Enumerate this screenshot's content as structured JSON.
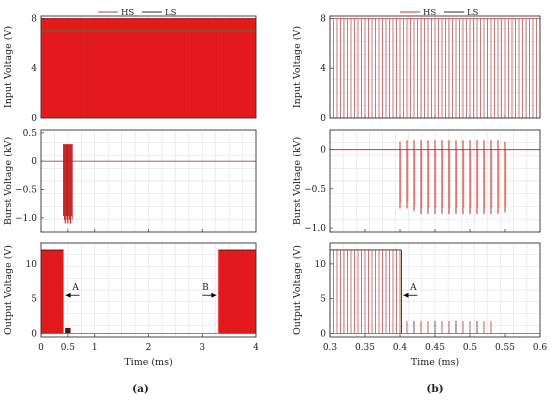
{
  "legend": {
    "hs": "HS",
    "ls": "LS"
  },
  "colors": {
    "hs": "#b04040",
    "ls": "#333333",
    "fill": "#e41a1c",
    "grid": "#dddddd",
    "axis": "#333333"
  },
  "chart_data": [
    {
      "panel": "a",
      "label": "(a)",
      "xlabel": "Time (ms)",
      "xlim": [
        0,
        4
      ],
      "xticks": [
        "0",
        "0.5",
        "1",
        "2",
        "3",
        "4"
      ],
      "xtick_values": [
        0,
        0.5,
        1,
        2,
        3,
        4
      ],
      "subplots": [
        {
          "type": "area",
          "ylabel": "Input Voltage (V)",
          "ylim": [
            0,
            8.2
          ],
          "yticks": [
            0,
            4,
            8
          ],
          "hs_level": 8.0,
          "ls_level": 7.0,
          "filled_span": [
            0,
            4
          ]
        },
        {
          "type": "line",
          "ylabel": "Burst Voltage (kV)",
          "ylim": [
            -1.25,
            0.55
          ],
          "yticks": [
            0.5,
            0,
            -0.5,
            -1.0
          ],
          "ytick_labels": [
            "0.5",
            "0",
            "−0.5",
            "−1.0"
          ],
          "burst_span": [
            0.42,
            0.58
          ],
          "burst_max": 0.3,
          "burst_min": -1.1
        },
        {
          "type": "area",
          "ylabel": "Output Voltage (V)",
          "ylim": [
            -0.5,
            13
          ],
          "yticks": [
            0,
            5,
            10
          ],
          "level": 12,
          "on_spans": [
            [
              0,
              0.42
            ],
            [
              3.3,
              4.0
            ]
          ],
          "residual_span": [
            0.45,
            0.55
          ],
          "residual_level": 0.8,
          "annotations": [
            {
              "text": "A",
              "x": 0.42,
              "y": 5.5,
              "dir": "left"
            },
            {
              "text": "B",
              "x": 3.3,
              "y": 5.5,
              "dir": "right"
            }
          ]
        }
      ]
    },
    {
      "panel": "b",
      "label": "(b)",
      "xlabel": "Time (ms)",
      "xlim": [
        0.3,
        0.6
      ],
      "xticks": [
        "0.3",
        "0.35",
        "0.4",
        "0.45",
        "0.5",
        "0.55",
        "0.6"
      ],
      "xtick_values": [
        0.3,
        0.35,
        0.4,
        0.45,
        0.5,
        0.55,
        0.6
      ],
      "subplots": [
        {
          "type": "line",
          "ylabel": "Input Voltage (V)",
          "ylim": [
            0,
            8.2
          ],
          "yticks": [
            0,
            4,
            8
          ],
          "level": 8,
          "pulse_period": 0.005,
          "pulse_span": [
            0.3,
            0.6
          ]
        },
        {
          "type": "line",
          "ylabel": "Burst Voltage (kV)",
          "ylim": [
            -1.05,
            0.25
          ],
          "yticks": [
            0,
            -0.5,
            -1.0
          ],
          "ytick_labels": [
            "0",
            "−0.5",
            "−1.0"
          ],
          "spike_times": [
            0.4,
            0.41,
            0.42,
            0.43,
            0.44,
            0.45,
            0.46,
            0.47,
            0.48,
            0.49,
            0.5,
            0.51,
            0.52,
            0.53,
            0.54,
            0.55
          ],
          "spike_max": [
            0.1,
            0.12,
            0.12,
            0.12,
            0.12,
            0.12,
            0.12,
            0.12,
            0.12,
            0.12,
            0.12,
            0.12,
            0.12,
            0.12,
            0.12,
            0.1
          ],
          "spike_min": [
            -0.75,
            -0.75,
            -0.78,
            -0.82,
            -0.82,
            -0.82,
            -0.82,
            -0.82,
            -0.82,
            -0.82,
            -0.82,
            -0.82,
            -0.82,
            -0.82,
            -0.82,
            -0.8
          ]
        },
        {
          "type": "line",
          "ylabel": "Output Voltage (V)",
          "ylim": [
            -0.5,
            13
          ],
          "yticks": [
            0,
            5,
            10
          ],
          "level": 12,
          "pulse_period": 0.005,
          "on_span": [
            0.3,
            0.402
          ],
          "residual_times": [
            0.41,
            0.42,
            0.43,
            0.44,
            0.45,
            0.46,
            0.47,
            0.48,
            0.49,
            0.5,
            0.51,
            0.52,
            0.53
          ],
          "residual_level": 1.8,
          "annotations": [
            {
              "text": "A",
              "x": 0.402,
              "y": 5.5,
              "dir": "left"
            }
          ]
        }
      ]
    }
  ]
}
